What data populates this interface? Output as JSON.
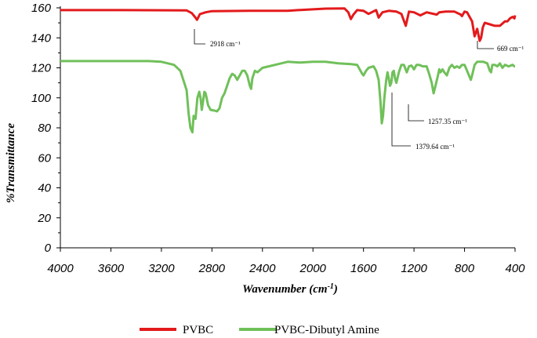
{
  "chart_data": {
    "type": "line",
    "xlabel": "Wavenumber (cm-1)",
    "ylabel": "%Transmittance",
    "xlim": [
      4000,
      400
    ],
    "ylim": [
      0,
      160
    ],
    "x_ticks": [
      "4000",
      "3600",
      "3200",
      "2800",
      "2400",
      "2000",
      "1600",
      "1200",
      "800",
      "400"
    ],
    "y_ticks": [
      "0",
      "20",
      "40",
      "60",
      "80",
      "100",
      "120",
      "140",
      "160"
    ],
    "legend_position": "bottom",
    "grid": false,
    "series": [
      {
        "name": "PVBC",
        "color": "#e31a1c",
        "points": [
          [
            4000,
            158.5
          ],
          [
            3500,
            158.5
          ],
          [
            3000,
            158.3
          ],
          [
            2960,
            156.5
          ],
          [
            2935,
            154
          ],
          [
            2918,
            152
          ],
          [
            2895,
            155.8
          ],
          [
            2850,
            157
          ],
          [
            2800,
            157.8
          ],
          [
            2500,
            158
          ],
          [
            2200,
            158
          ],
          [
            2100,
            158.6
          ],
          [
            1900,
            159.5
          ],
          [
            1750,
            159.6
          ],
          [
            1720,
            157
          ],
          [
            1700,
            152.5
          ],
          [
            1680,
            155.5
          ],
          [
            1650,
            158.5
          ],
          [
            1600,
            158
          ],
          [
            1560,
            156
          ],
          [
            1500,
            158.5
          ],
          [
            1480,
            153.5
          ],
          [
            1450,
            157
          ],
          [
            1400,
            158
          ],
          [
            1340,
            157.5
          ],
          [
            1300,
            156
          ],
          [
            1265,
            148
          ],
          [
            1240,
            157.5
          ],
          [
            1200,
            157
          ],
          [
            1150,
            155
          ],
          [
            1100,
            157
          ],
          [
            1020,
            155.5
          ],
          [
            1000,
            157
          ],
          [
            950,
            157.5
          ],
          [
            880,
            157.5
          ],
          [
            830,
            155.5
          ],
          [
            820,
            154.5
          ],
          [
            800,
            157.5
          ],
          [
            780,
            157
          ],
          [
            760,
            154
          ],
          [
            740,
            151
          ],
          [
            720,
            141
          ],
          [
            700,
            146
          ],
          [
            680,
            138
          ],
          [
            669,
            140
          ],
          [
            655,
            147
          ],
          [
            640,
            150
          ],
          [
            600,
            149
          ],
          [
            560,
            148
          ],
          [
            520,
            148
          ],
          [
            480,
            151
          ],
          [
            460,
            151
          ],
          [
            440,
            153
          ],
          [
            420,
            154
          ],
          [
            405,
            153
          ],
          [
            400,
            155
          ]
        ]
      },
      {
        "name": "PVBC-Dibutyl Amine",
        "color": "#70c05a",
        "points": [
          [
            4000,
            124.5
          ],
          [
            3600,
            124.5
          ],
          [
            3300,
            124.5
          ],
          [
            3200,
            124
          ],
          [
            3100,
            122
          ],
          [
            3050,
            118
          ],
          [
            3000,
            105
          ],
          [
            2985,
            90
          ],
          [
            2970,
            80
          ],
          [
            2955,
            77
          ],
          [
            2945,
            88
          ],
          [
            2930,
            86
          ],
          [
            2915,
            100
          ],
          [
            2900,
            104
          ],
          [
            2890,
            100
          ],
          [
            2880,
            92
          ],
          [
            2870,
            98
          ],
          [
            2860,
            104
          ],
          [
            2850,
            103
          ],
          [
            2830,
            95
          ],
          [
            2810,
            92
          ],
          [
            2780,
            91.5
          ],
          [
            2760,
            91
          ],
          [
            2740,
            93
          ],
          [
            2720,
            100
          ],
          [
            2700,
            103
          ],
          [
            2680,
            108
          ],
          [
            2660,
            113
          ],
          [
            2640,
            116
          ],
          [
            2620,
            115
          ],
          [
            2600,
            112
          ],
          [
            2580,
            115
          ],
          [
            2560,
            118
          ],
          [
            2540,
            118
          ],
          [
            2520,
            115
          ],
          [
            2500,
            108
          ],
          [
            2490,
            106
          ],
          [
            2480,
            113
          ],
          [
            2460,
            118
          ],
          [
            2440,
            117
          ],
          [
            2400,
            120
          ],
          [
            2300,
            122
          ],
          [
            2200,
            124
          ],
          [
            2100,
            123.5
          ],
          [
            2000,
            124
          ],
          [
            1900,
            124
          ],
          [
            1800,
            123
          ],
          [
            1700,
            122.5
          ],
          [
            1650,
            122
          ],
          [
            1630,
            119
          ],
          [
            1610,
            116
          ],
          [
            1600,
            115
          ],
          [
            1580,
            118
          ],
          [
            1560,
            120
          ],
          [
            1520,
            121
          ],
          [
            1500,
            118
          ],
          [
            1480,
            112
          ],
          [
            1465,
            97
          ],
          [
            1455,
            83
          ],
          [
            1445,
            88
          ],
          [
            1435,
            100
          ],
          [
            1420,
            112
          ],
          [
            1410,
            117
          ],
          [
            1400,
            113
          ],
          [
            1390,
            108
          ],
          [
            1380,
            110
          ],
          [
            1370,
            117
          ],
          [
            1360,
            118
          ],
          [
            1350,
            113
          ],
          [
            1340,
            110
          ],
          [
            1320,
            117
          ],
          [
            1300,
            122
          ],
          [
            1280,
            122
          ],
          [
            1257,
            117
          ],
          [
            1240,
            121
          ],
          [
            1220,
            121.5
          ],
          [
            1200,
            119
          ],
          [
            1180,
            122
          ],
          [
            1160,
            122
          ],
          [
            1130,
            121
          ],
          [
            1100,
            121
          ],
          [
            1080,
            116
          ],
          [
            1060,
            110
          ],
          [
            1045,
            103
          ],
          [
            1030,
            108
          ],
          [
            1010,
            115
          ],
          [
            1000,
            119
          ],
          [
            990,
            117
          ],
          [
            975,
            119
          ],
          [
            960,
            117
          ],
          [
            940,
            115
          ],
          [
            920,
            120
          ],
          [
            900,
            122
          ],
          [
            880,
            120
          ],
          [
            860,
            121
          ],
          [
            840,
            120
          ],
          [
            820,
            122
          ],
          [
            800,
            122
          ],
          [
            780,
            118
          ],
          [
            760,
            114
          ],
          [
            750,
            112
          ],
          [
            740,
            115
          ],
          [
            720,
            122
          ],
          [
            700,
            124
          ],
          [
            650,
            124
          ],
          [
            620,
            123
          ],
          [
            600,
            118
          ],
          [
            590,
            117
          ],
          [
            580,
            122
          ],
          [
            560,
            122
          ],
          [
            540,
            121
          ],
          [
            520,
            123
          ],
          [
            500,
            120
          ],
          [
            480,
            122
          ],
          [
            450,
            121
          ],
          [
            420,
            122
          ],
          [
            405,
            121
          ],
          [
            400,
            121
          ]
        ]
      }
    ],
    "annotations": [
      {
        "text": "2918 cm⁻¹",
        "x": 2918,
        "series": "PVBC"
      },
      {
        "text": "669 cm⁻¹",
        "x": 669,
        "series": "PVBC"
      },
      {
        "text": "1257.35 cm⁻¹",
        "x": 1257.35,
        "series": "PVBC-Dibutyl Amine"
      },
      {
        "text": "1379.64 cm⁻¹",
        "x": 1379.64,
        "series": "PVBC-Dibutyl Amine"
      }
    ]
  }
}
